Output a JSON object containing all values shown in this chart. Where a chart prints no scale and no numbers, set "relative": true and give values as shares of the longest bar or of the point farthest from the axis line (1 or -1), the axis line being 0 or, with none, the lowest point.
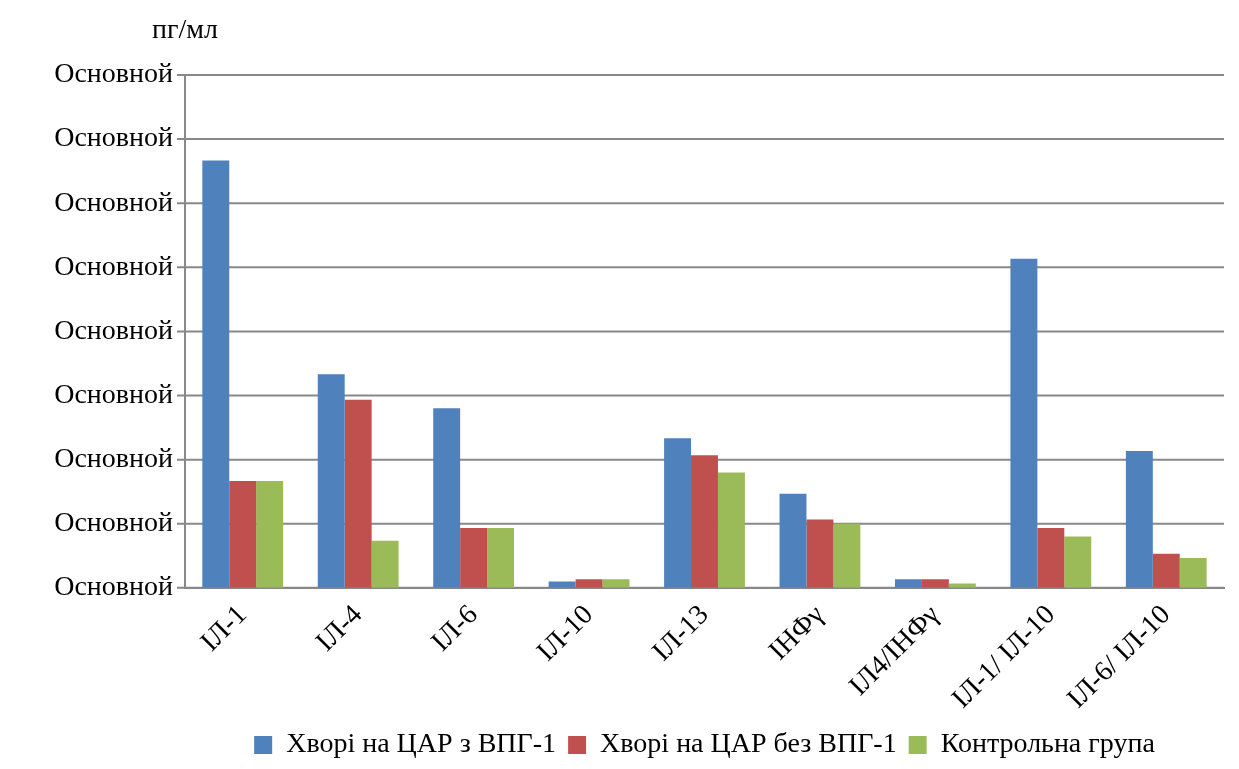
{
  "chart_data": {
    "type": "bar",
    "ylabel": "пг/мл",
    "relative": true,
    "categories": [
      "ІЛ-1",
      "ІЛ-4",
      "ІЛ-6",
      "ІЛ-10",
      "ІЛ-13",
      "ІНФγ",
      "ІЛ4/ІНФγ",
      "ІЛ-1/ ІЛ-10",
      "ІЛ-6/ ІЛ-10"
    ],
    "series": [
      {
        "name": "Хворі на ЦАР з ВПГ-1",
        "color": "#4f81bd",
        "values": [
          1,
          0.5,
          0.42,
          0.015,
          0.35,
          0.22,
          0.02,
          0.77,
          0.32
        ]
      },
      {
        "name": "Хворі на ЦАР без ВПГ-1",
        "color": "#c0504d",
        "values": [
          0.25,
          0.44,
          0.14,
          0.02,
          0.31,
          0.16,
          0.02,
          0.14,
          0.08
        ]
      },
      {
        "name": "Контрольна група",
        "color": "#9bbb59",
        "values": [
          0.25,
          0.11,
          0.14,
          0.02,
          0.27,
          0.15,
          0.01,
          0.12,
          0.07
        ]
      }
    ],
    "annotations": [
      "Основной",
      "Основной",
      "Основной",
      "Основной",
      "Основной",
      "Основной",
      "Основной",
      "Основной",
      "Основной"
    ],
    "grid": "y",
    "legend": "bottom"
  }
}
